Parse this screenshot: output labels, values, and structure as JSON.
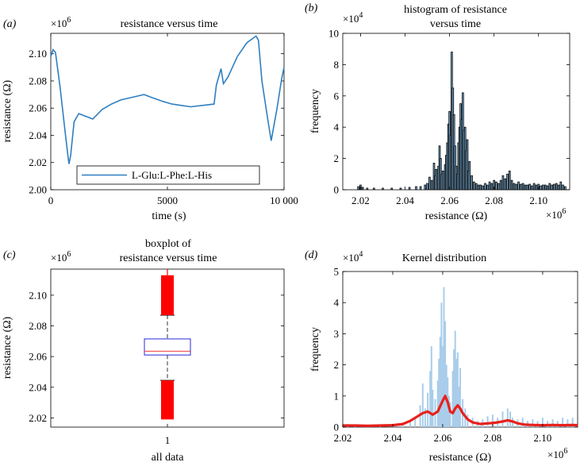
{
  "panels": {
    "a": {
      "tag": "(a)",
      "chart_data": {
        "type": "line",
        "title": "resistance versus time",
        "xlabel": "time (s)",
        "ylabel": "resistance (Ω)",
        "multiplier": "×10",
        "multiplier_exp": "6",
        "xlim": [
          0,
          10000
        ],
        "ylim": [
          2.0,
          2.115
        ],
        "xticks": [
          0,
          5000,
          10000
        ],
        "xtick_labels": [
          "0",
          "5000",
          "10 000"
        ],
        "yticks": [
          2.0,
          2.02,
          2.04,
          2.06,
          2.08,
          2.1
        ],
        "ytick_labels": [
          "2.00",
          "2.02",
          "2.04",
          "2.06",
          "2.08",
          "2.10"
        ],
        "legend": "L-Glu:L-Phe:L-His",
        "legend_position": "bottom-center",
        "color": "#2f7fc1",
        "x": [
          0,
          100,
          200,
          400,
          600,
          700,
          780,
          850,
          1000,
          1200,
          1500,
          1800,
          2200,
          2600,
          3000,
          3500,
          4000,
          4300,
          4800,
          5200,
          5600,
          6000,
          6500,
          7000,
          7100,
          7300,
          7400,
          7600,
          8000,
          8400,
          8800,
          8900,
          9050,
          9300,
          9450,
          9700,
          9900,
          10000
        ],
        "y": [
          2.098,
          2.103,
          2.101,
          2.075,
          2.045,
          2.03,
          2.019,
          2.025,
          2.05,
          2.056,
          2.054,
          2.052,
          2.059,
          2.063,
          2.066,
          2.068,
          2.07,
          2.068,
          2.065,
          2.063,
          2.062,
          2.061,
          2.062,
          2.063,
          2.077,
          2.089,
          2.078,
          2.083,
          2.098,
          2.108,
          2.113,
          2.11,
          2.08,
          2.052,
          2.036,
          2.06,
          2.082,
          2.09
        ]
      }
    },
    "b": {
      "tag": "(b)",
      "chart_data": {
        "type": "bar",
        "title": "histogram of resistance",
        "title_line2": "versus time",
        "xlabel": "resistance (Ω)",
        "ylabel": "frequency",
        "ymultiplier": "×10",
        "ymultiplier_exp": "4",
        "xmultiplier": "×10",
        "xmultiplier_exp": "6",
        "xlim": [
          2.012,
          2.114
        ],
        "ylim": [
          0,
          10
        ],
        "xticks": [
          2.02,
          2.04,
          2.06,
          2.08,
          2.1
        ],
        "xtick_labels": [
          "2.02",
          "2.04",
          "2.06",
          "2.08",
          "2.10"
        ],
        "yticks": [
          0,
          2,
          4,
          6,
          8,
          10
        ],
        "ytick_labels": [
          "0",
          "2",
          "4",
          "6",
          "8",
          "10"
        ],
        "fill": "#79b3e0",
        "stroke": "#111111",
        "bars": [
          [
            2.019,
            0.2
          ],
          [
            2.02,
            0.3
          ],
          [
            2.021,
            0.15
          ],
          [
            2.023,
            0.1
          ],
          [
            2.026,
            0.1
          ],
          [
            2.03,
            0.1
          ],
          [
            2.034,
            0.1
          ],
          [
            2.038,
            0.1
          ],
          [
            2.042,
            0.15
          ],
          [
            2.045,
            0.2
          ],
          [
            2.047,
            0.2
          ],
          [
            2.049,
            0.3
          ],
          [
            2.05,
            0.4
          ],
          [
            2.051,
            0.8
          ],
          [
            2.052,
            0.6
          ],
          [
            2.053,
            1.7
          ],
          [
            2.0535,
            0.9
          ],
          [
            2.054,
            1.3
          ],
          [
            2.055,
            1.5
          ],
          [
            2.0555,
            2.8
          ],
          [
            2.056,
            2.0
          ],
          [
            2.0565,
            1.0
          ],
          [
            2.057,
            1.2
          ],
          [
            2.058,
            1.6
          ],
          [
            2.0585,
            2.2
          ],
          [
            2.059,
            3.0
          ],
          [
            2.0595,
            4.2
          ],
          [
            2.06,
            5.0
          ],
          [
            2.0605,
            3.5
          ],
          [
            2.061,
            8.8
          ],
          [
            2.0615,
            6.5
          ],
          [
            2.062,
            4.8
          ],
          [
            2.0625,
            2.8
          ],
          [
            2.063,
            1.5
          ],
          [
            2.0635,
            1.0
          ],
          [
            2.064,
            3.0
          ],
          [
            2.0645,
            4.0
          ],
          [
            2.065,
            5.5
          ],
          [
            2.0655,
            4.5
          ],
          [
            2.066,
            6.2
          ],
          [
            2.0665,
            3.8
          ],
          [
            2.067,
            4.0
          ],
          [
            2.0675,
            2.5
          ],
          [
            2.068,
            3.2
          ],
          [
            2.0685,
            1.2
          ],
          [
            2.069,
            1.8
          ],
          [
            2.07,
            0.9
          ],
          [
            2.071,
            0.5
          ],
          [
            2.072,
            0.4
          ],
          [
            2.073,
            0.3
          ],
          [
            2.074,
            0.3
          ],
          [
            2.075,
            0.25
          ],
          [
            2.076,
            0.4
          ],
          [
            2.077,
            0.3
          ],
          [
            2.078,
            0.5
          ],
          [
            2.079,
            0.4
          ],
          [
            2.08,
            0.6
          ],
          [
            2.081,
            0.5
          ],
          [
            2.082,
            0.4
          ],
          [
            2.083,
            0.6
          ],
          [
            2.084,
            0.9
          ],
          [
            2.085,
            0.7
          ],
          [
            2.086,
            1.0
          ],
          [
            2.087,
            1.2
          ],
          [
            2.088,
            0.6
          ],
          [
            2.089,
            0.4
          ],
          [
            2.09,
            0.35
          ],
          [
            2.091,
            0.5
          ],
          [
            2.092,
            0.35
          ],
          [
            2.093,
            0.4
          ],
          [
            2.094,
            0.3
          ],
          [
            2.095,
            0.3
          ],
          [
            2.096,
            0.35
          ],
          [
            2.097,
            0.25
          ],
          [
            2.098,
            0.4
          ],
          [
            2.099,
            0.3
          ],
          [
            2.1,
            0.35
          ],
          [
            2.101,
            0.25
          ],
          [
            2.102,
            0.3
          ],
          [
            2.103,
            0.3
          ],
          [
            2.104,
            0.25
          ],
          [
            2.105,
            0.4
          ],
          [
            2.106,
            0.3
          ],
          [
            2.107,
            0.35
          ],
          [
            2.108,
            0.4
          ],
          [
            2.109,
            0.3
          ],
          [
            2.11,
            0.5
          ],
          [
            2.111,
            0.3
          ],
          [
            2.112,
            0.2
          ]
        ]
      }
    },
    "c": {
      "tag": "(c)",
      "chart_data": {
        "type": "box",
        "title": "boxplot of",
        "title_line2": "resistance versus time",
        "xlabel": "all data",
        "ylabel": "resistance (Ω)",
        "multiplier": "×10",
        "multiplier_exp": "6",
        "ylim": [
          2.014,
          2.117
        ],
        "yticks": [
          2.02,
          2.04,
          2.06,
          2.08,
          2.1
        ],
        "ytick_labels": [
          "2.02",
          "2.04",
          "2.06",
          "2.08",
          "2.10"
        ],
        "category": "1",
        "q1": 2.061,
        "median": 2.0635,
        "q3": 2.0715,
        "whisker_low": 2.0445,
        "whisker_high": 2.087,
        "outlier_high": [
          2.087,
          2.113
        ],
        "outlier_low": [
          2.019,
          2.0445
        ],
        "box_color": "#3b3bdc",
        "median_color": "#ee3b3b",
        "outlier_color": "#ff0000"
      }
    },
    "d": {
      "tag": "(d)",
      "chart_data": {
        "type": "area",
        "title": "Kernel distribution",
        "xlabel": "resistance (Ω)",
        "ylabel": "frequency",
        "ymultiplier": "×10",
        "ymultiplier_exp": "4",
        "xmultiplier": "×10",
        "xmultiplier_exp": "6",
        "xlim": [
          2.02,
          2.114
        ],
        "ylim": [
          0,
          5
        ],
        "xticks": [
          2.02,
          2.04,
          2.06,
          2.08,
          2.1
        ],
        "xtick_labels": [
          "2.02",
          "2.04",
          "2.06",
          "2.08",
          "2.10"
        ],
        "yticks": [
          0,
          1,
          2,
          3,
          4,
          5
        ],
        "ytick_labels": [
          "0",
          "1",
          "2",
          "3",
          "4",
          "5"
        ],
        "hist_color": "#a9cdea",
        "kde_color": "#e8201c",
        "hist": [
          [
            2.02,
            0.05
          ],
          [
            2.022,
            0.1
          ],
          [
            2.025,
            0.05
          ],
          [
            2.03,
            0.05
          ],
          [
            2.035,
            0.05
          ],
          [
            2.04,
            0.05
          ],
          [
            2.044,
            0.1
          ],
          [
            2.047,
            0.15
          ],
          [
            2.049,
            0.3
          ],
          [
            2.051,
            0.7
          ],
          [
            2.052,
            1.4
          ],
          [
            2.053,
            0.6
          ],
          [
            2.054,
            1.1
          ],
          [
            2.055,
            1.8
          ],
          [
            2.0555,
            2.6
          ],
          [
            2.056,
            1.2
          ],
          [
            2.057,
            0.9
          ],
          [
            2.058,
            1.5
          ],
          [
            2.0585,
            2.2
          ],
          [
            2.059,
            2.9
          ],
          [
            2.0595,
            4.0
          ],
          [
            2.06,
            2.6
          ],
          [
            2.0605,
            4.5
          ],
          [
            2.061,
            3.4
          ],
          [
            2.0615,
            2.0
          ],
          [
            2.062,
            1.6
          ],
          [
            2.0625,
            1.0
          ],
          [
            2.063,
            0.8
          ],
          [
            2.064,
            1.8
          ],
          [
            2.0645,
            2.5
          ],
          [
            2.065,
            3.1
          ],
          [
            2.0655,
            2.2
          ],
          [
            2.066,
            2.4
          ],
          [
            2.0665,
            1.3
          ],
          [
            2.067,
            1.9
          ],
          [
            2.068,
            0.9
          ],
          [
            2.069,
            0.6
          ],
          [
            2.07,
            0.4
          ],
          [
            2.072,
            0.3
          ],
          [
            2.074,
            0.2
          ],
          [
            2.076,
            0.25
          ],
          [
            2.078,
            0.35
          ],
          [
            2.08,
            0.4
          ],
          [
            2.082,
            0.3
          ],
          [
            2.084,
            0.5
          ],
          [
            2.086,
            0.6
          ],
          [
            2.087,
            0.5
          ],
          [
            2.088,
            0.3
          ],
          [
            2.09,
            0.25
          ],
          [
            2.092,
            0.3
          ],
          [
            2.094,
            0.2
          ],
          [
            2.096,
            0.25
          ],
          [
            2.098,
            0.2
          ],
          [
            2.1,
            0.3
          ],
          [
            2.102,
            0.2
          ],
          [
            2.104,
            0.25
          ],
          [
            2.106,
            0.2
          ],
          [
            2.108,
            0.3
          ],
          [
            2.11,
            0.25
          ],
          [
            2.112,
            0.3
          ]
        ],
        "kde_x": [
          2.02,
          2.025,
          2.03,
          2.035,
          2.04,
          2.044,
          2.047,
          2.05,
          2.052,
          2.054,
          2.056,
          2.058,
          2.06,
          2.061,
          2.062,
          2.063,
          2.064,
          2.065,
          2.066,
          2.067,
          2.068,
          2.07,
          2.072,
          2.075,
          2.078,
          2.081,
          2.084,
          2.086,
          2.088,
          2.09,
          2.093,
          2.096,
          2.1,
          2.104,
          2.108,
          2.112,
          2.114
        ],
        "kde_y": [
          0.05,
          0.05,
          0.04,
          0.05,
          0.06,
          0.1,
          0.2,
          0.35,
          0.45,
          0.5,
          0.4,
          0.5,
          0.85,
          1.0,
          0.8,
          0.5,
          0.45,
          0.6,
          0.7,
          0.6,
          0.45,
          0.25,
          0.15,
          0.1,
          0.12,
          0.14,
          0.18,
          0.22,
          0.18,
          0.12,
          0.08,
          0.07,
          0.06,
          0.07,
          0.06,
          0.07,
          0.06
        ]
      }
    }
  }
}
